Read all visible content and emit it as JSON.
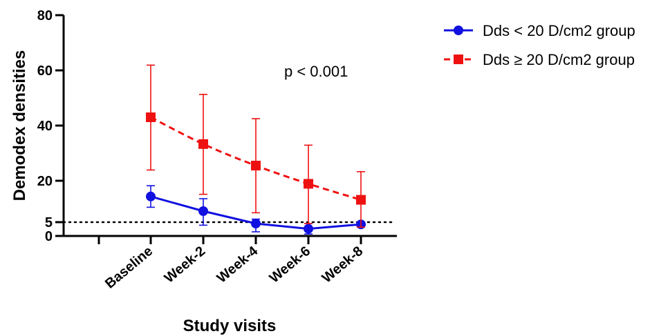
{
  "chart_data": {
    "type": "line",
    "xlabel": "Study visits",
    "ylabel": "Demodex densities",
    "categories": [
      "Baseline",
      "Week-2",
      "Week-4",
      "Week-6",
      "Week-8"
    ],
    "ylim": [
      0,
      80
    ],
    "yticks": [
      0,
      5,
      20,
      40,
      60,
      80
    ],
    "reference_line": 5,
    "annotation": "p < 0.001",
    "legend_position": "top-right",
    "series": [
      {
        "name": "Dds < 20 D/cm2 group",
        "color": "#1010e0",
        "line_style": "solid",
        "marker": "circle",
        "values": [
          14.3,
          9.0,
          4.5,
          2.6,
          4.2
        ],
        "err_upper": [
          18.2,
          13.5,
          6.1,
          4.5,
          5.0
        ],
        "err_lower": [
          10.4,
          3.9,
          1.5,
          0.7,
          3.4
        ]
      },
      {
        "name": "Dds ≥ 20 D/cm2 group",
        "color": "#ee1111",
        "line_style": "dashed",
        "marker": "square",
        "values": [
          43.0,
          33.3,
          25.5,
          18.9,
          13.1
        ],
        "err_upper": [
          61.9,
          51.3,
          42.5,
          32.9,
          23.3
        ],
        "err_lower": [
          23.9,
          15.1,
          8.4,
          4.5,
          3.2
        ]
      }
    ]
  }
}
